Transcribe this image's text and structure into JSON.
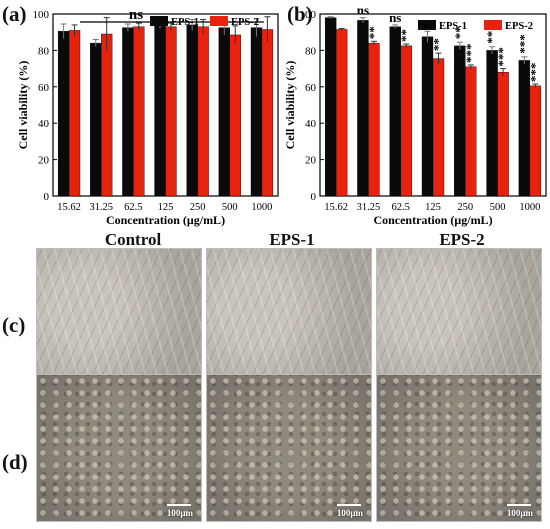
{
  "panels": {
    "a": "(a)",
    "b": "(b)",
    "c": "(c)",
    "d": "(d)"
  },
  "columns": [
    "Control",
    "EPS-1",
    "EPS-2"
  ],
  "scale_bar": "100μm",
  "legend": [
    "EPS-1",
    "EPS-2"
  ],
  "colors": {
    "eps1": "#0a0a0a",
    "eps2": "#e8220e"
  },
  "chart_data": [
    {
      "type": "bar",
      "panel": "a",
      "categories": [
        "15.62",
        "31.25",
        "62.5",
        "125",
        "250",
        "500",
        "1000"
      ],
      "series": [
        {
          "name": "EPS-1",
          "values": [
            90.5,
            84,
            92.5,
            94,
            94,
            92.5,
            92.5
          ],
          "errors": [
            4,
            2,
            2,
            2,
            3,
            4,
            5
          ]
        },
        {
          "name": "EPS-2",
          "values": [
            91,
            89,
            93,
            93,
            93,
            88.5,
            91.5
          ],
          "errors": [
            3,
            9,
            2,
            2,
            4,
            5,
            7
          ]
        }
      ],
      "significance": [
        {
          "label": "ns",
          "span": [
            "15.62",
            "1000"
          ]
        }
      ],
      "xlabel": "Concentration (μg/mL)",
      "ylabel": "Cell viability (%)",
      "ylim": [
        0,
        100
      ],
      "yticks": [
        0,
        20,
        40,
        60,
        80,
        100
      ],
      "legend_position": "top-right"
    },
    {
      "type": "bar",
      "panel": "b",
      "categories": [
        "15.62",
        "31.25",
        "62.5",
        "125",
        "250",
        "500",
        "1000"
      ],
      "series": [
        {
          "name": "EPS-1",
          "values": [
            98,
            96.5,
            93,
            87.5,
            82.5,
            80,
            74.5
          ],
          "errors": [
            0.5,
            1.5,
            1,
            3,
            2,
            2,
            2
          ]
        },
        {
          "name": "EPS-2",
          "values": [
            91.5,
            84,
            82.5,
            75.5,
            71,
            68,
            60.5
          ],
          "errors": [
            0.5,
            1,
            1,
            3,
            1,
            2,
            1
          ]
        }
      ],
      "significance": {
        "EPS-1": [
          "",
          "ns",
          "ns",
          "*",
          "**",
          "**",
          "***"
        ],
        "EPS-2": [
          "",
          "**",
          "**",
          "**",
          "***",
          "***",
          "***"
        ]
      },
      "xlabel": "Concentration (μg/mL)",
      "ylabel": "Cell viability (%)",
      "ylim": [
        0,
        100
      ],
      "yticks": [
        0,
        20,
        40,
        60,
        80,
        100
      ],
      "legend_position": "top-right"
    }
  ]
}
